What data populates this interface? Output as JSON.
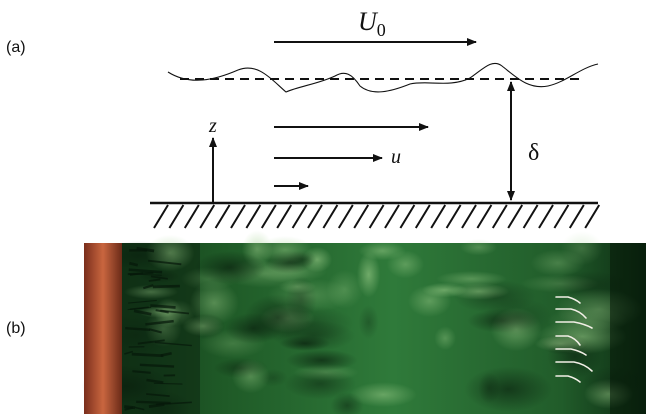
{
  "panels": {
    "a": {
      "label": "(a)"
    },
    "b": {
      "label": "(b)"
    }
  },
  "symbols": {
    "freestream": "U",
    "freestream_sub": "0",
    "velocity": "u",
    "height": "z",
    "thickness": "δ"
  },
  "colors": {
    "ink": "#111111",
    "photo_dark": "#0b2410",
    "photo_mid": "#2f7a3a",
    "photo_light": "#7fbf7a",
    "wall_copper": "#b8563a",
    "dye_streaks": "#f2efe6"
  }
}
